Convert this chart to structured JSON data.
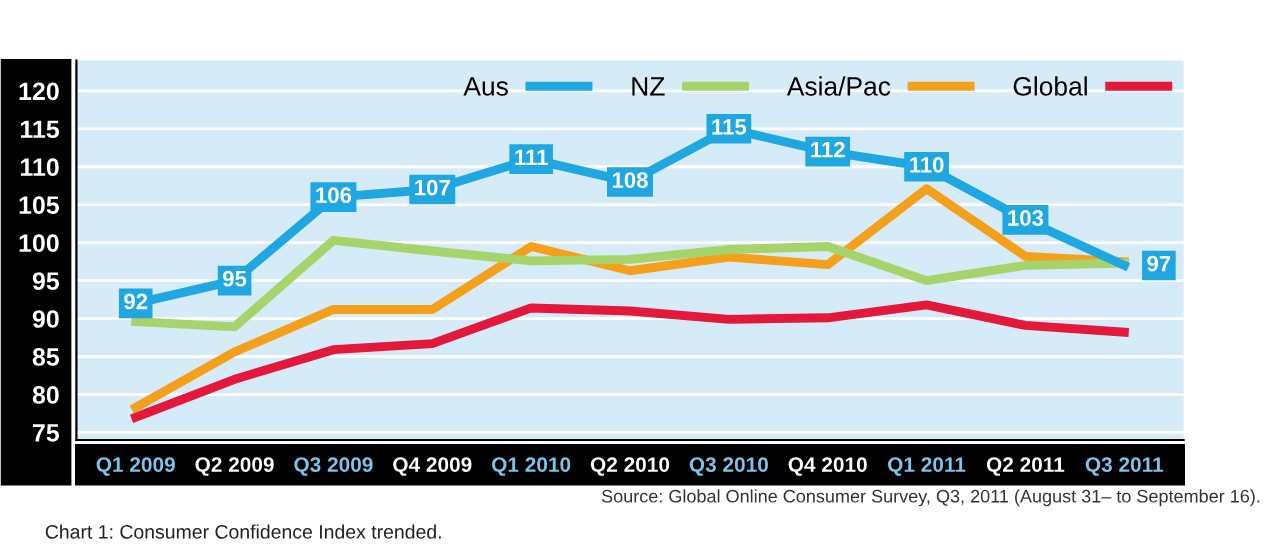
{
  "chart_data": {
    "type": "line",
    "categories": [
      "Q1 2009",
      "Q2 2009",
      "Q3 2009",
      "Q4 2009",
      "Q1 2010",
      "Q2 2010",
      "Q3 2010",
      "Q4 2010",
      "Q1 2011",
      "Q2 2011",
      "Q3 2011"
    ],
    "series": [
      {
        "name": "Aus",
        "color": "#1ea7e0",
        "marker": "square",
        "values": [
          92,
          95,
          106,
          107,
          111,
          108,
          115,
          112,
          110,
          103,
          97
        ],
        "value_labels": [
          "92",
          "95",
          "106",
          "107",
          "111",
          "108",
          "115",
          "112",
          "110",
          "103",
          "97"
        ]
      },
      {
        "name": "NZ",
        "color": "#a6d36a",
        "values": [
          89.6,
          88.9,
          100.3,
          98.9,
          97.6,
          97.8,
          99.1,
          99.5,
          95.0,
          97.0,
          97.3
        ]
      },
      {
        "name": "Asia/Pac",
        "color": "#f5a01a",
        "values": [
          78.3,
          85.6,
          91.2,
          91.2,
          99.5,
          96.3,
          98.1,
          97.1,
          107.1,
          98.2,
          97.5
        ]
      },
      {
        "name": "Global",
        "color": "#e3183a",
        "values": [
          77.0,
          82.0,
          85.9,
          86.7,
          91.4,
          91.0,
          89.9,
          90.1,
          91.8,
          89.1,
          88.2
        ]
      }
    ],
    "ylim": [
      74,
      124
    ],
    "yticks": [
      75,
      80,
      85,
      90,
      95,
      100,
      105,
      110,
      115,
      120
    ],
    "grid": "y",
    "legend": "top right",
    "line_style": "solid",
    "annotations": [
      "Source: Global Online Consumer Survey, Q3, 2011 (August 31– to September 16).",
      "Chart 1: Consumer Confidence Index trended."
    ]
  }
}
